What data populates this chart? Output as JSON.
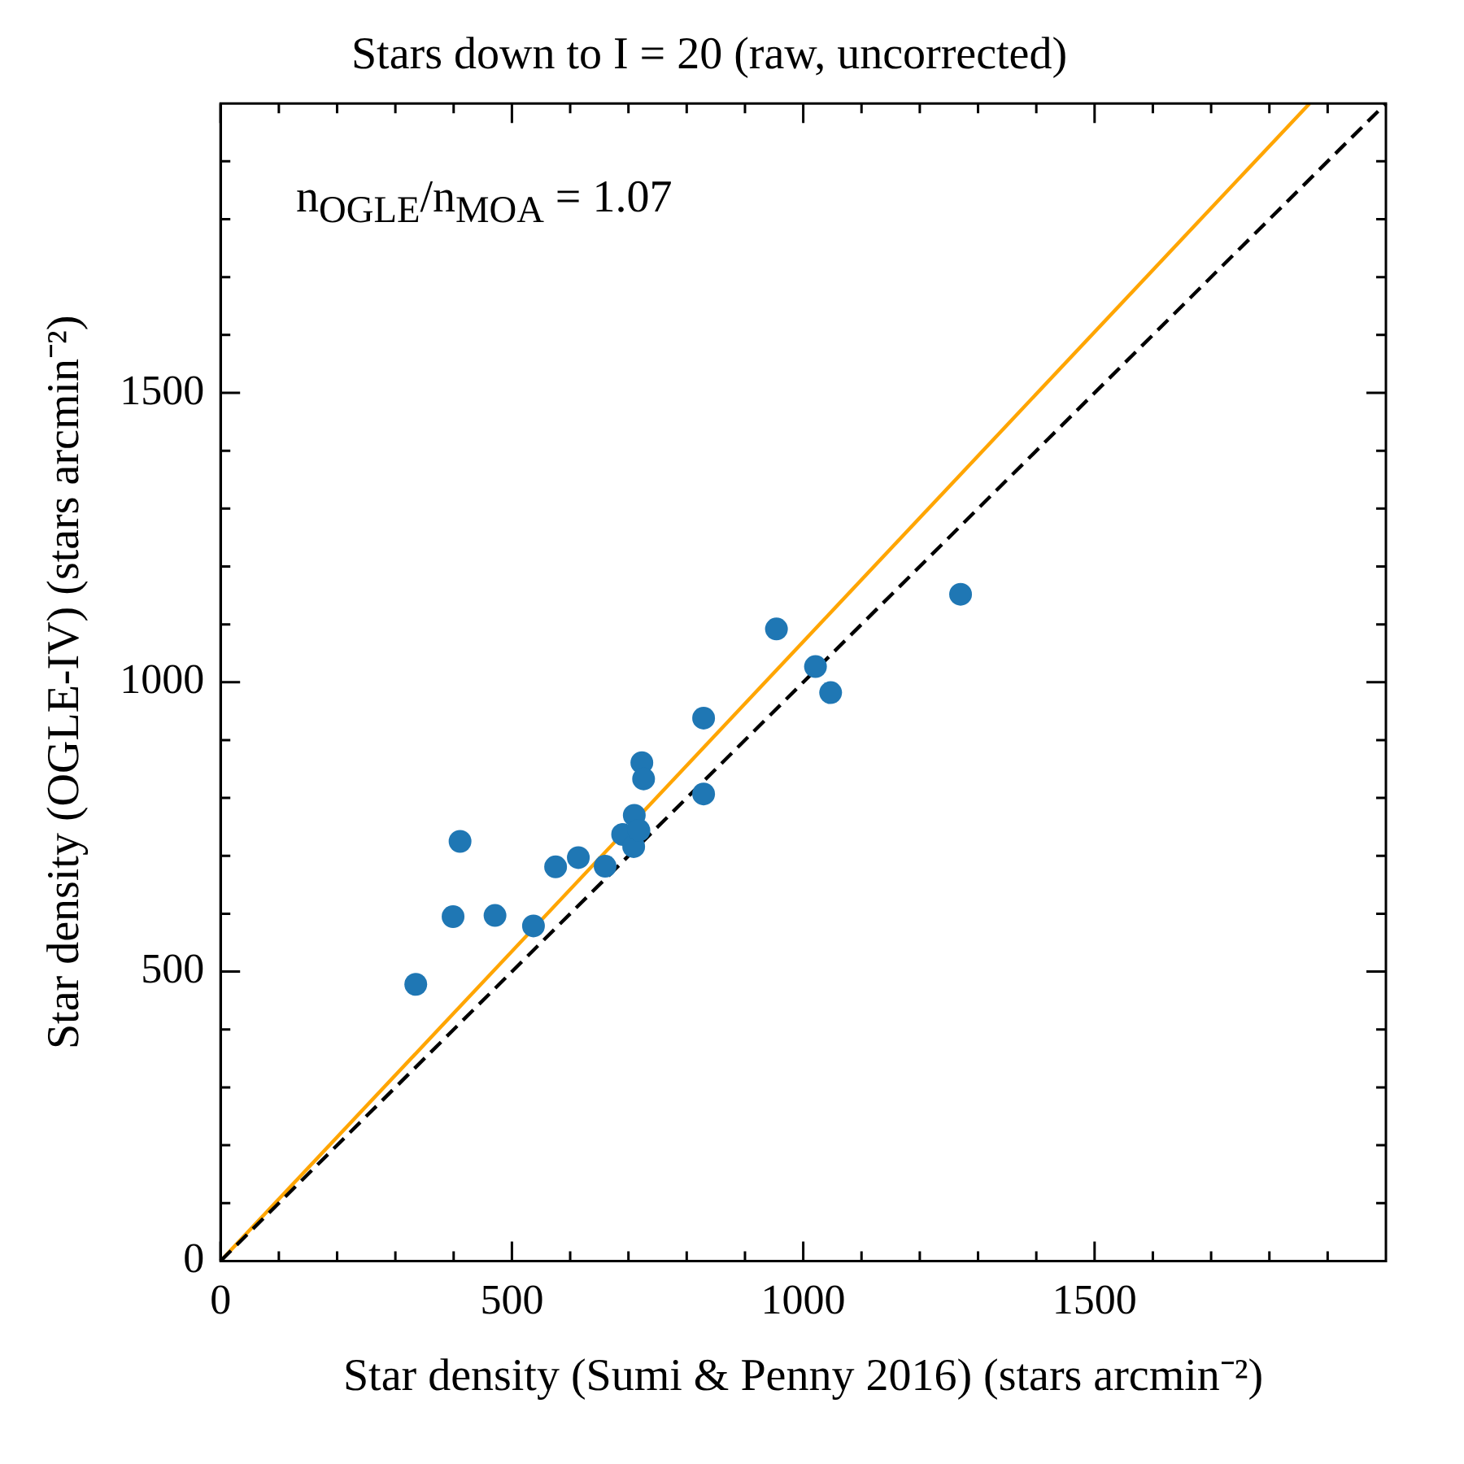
{
  "chart_data": {
    "type": "scatter",
    "title": "Stars down to I = 20 (raw, uncorrected)",
    "xlabel": "Star density (Sumi & Penny 2016) (stars arcmin⁻²)",
    "ylabel": "Star density (OGLE-IV) (stars arcmin⁻²)",
    "annotations": [
      "n$_{OGLE}$/n$_{MOA}$ = 1.07"
    ],
    "series": [
      {
        "type": "scatter",
        "color": "#1f77b4",
        "marker": "circle",
        "x": [
          335,
          399,
          411,
          471,
          537,
          575,
          614,
          660,
          690,
          710,
          709,
          718,
          723,
          726,
          829,
          829,
          954,
          1021,
          1047,
          1270
        ],
        "values": [
          478,
          595,
          725,
          597,
          579,
          681,
          697,
          682,
          737,
          770,
          716,
          744,
          861,
          833,
          938,
          807,
          1092,
          1027,
          982,
          1152
        ]
      },
      {
        "type": "line",
        "color": "#000000",
        "line_style": "dashed",
        "marker": "none",
        "x": [
          0,
          2000
        ],
        "values": [
          0,
          2000
        ]
      },
      {
        "type": "line",
        "color": "#ffa500",
        "line_style": "solid",
        "marker": "none",
        "x": [
          0,
          1869
        ],
        "values": [
          0,
          2000
        ]
      }
    ],
    "xlim": [
      0,
      2000
    ],
    "ylim": [
      0,
      2000
    ],
    "xticks": [
      0,
      {
        "value": 100,
        "label": null
      },
      {
        "value": 200,
        "label": null
      },
      {
        "value": 300,
        "label": null
      },
      {
        "value": 400,
        "label": null
      },
      500,
      {
        "value": 600,
        "label": null
      },
      {
        "value": 700,
        "label": null
      },
      {
        "value": 800,
        "label": null
      },
      {
        "value": 900,
        "label": null
      },
      1000,
      {
        "value": 1100,
        "label": null
      },
      {
        "value": 1200,
        "label": null
      },
      {
        "value": 1300,
        "label": null
      },
      {
        "value": 1400,
        "label": null
      },
      1500,
      {
        "value": 1600,
        "label": null
      },
      {
        "value": 1700,
        "label": null
      },
      {
        "value": 1800,
        "label": null
      },
      {
        "value": 1900,
        "label": null
      }
    ],
    "yticks": [
      0,
      {
        "value": 100,
        "label": null
      },
      {
        "value": 200,
        "label": null
      },
      {
        "value": 300,
        "label": null
      },
      {
        "value": 400,
        "label": null
      },
      500,
      {
        "value": 600,
        "label": null
      },
      {
        "value": 700,
        "label": null
      },
      {
        "value": 800,
        "label": null
      },
      {
        "value": 900,
        "label": null
      },
      1000,
      {
        "value": 1100,
        "label": null
      },
      {
        "value": 1200,
        "label": null
      },
      {
        "value": 1300,
        "label": null
      },
      {
        "value": 1400,
        "label": null
      },
      1500,
      {
        "value": 1600,
        "label": null
      },
      {
        "value": 1700,
        "label": null
      },
      {
        "value": 1800,
        "label": null
      },
      {
        "value": 1900,
        "label": null
      }
    ],
    "grid": false,
    "legend": false
  }
}
